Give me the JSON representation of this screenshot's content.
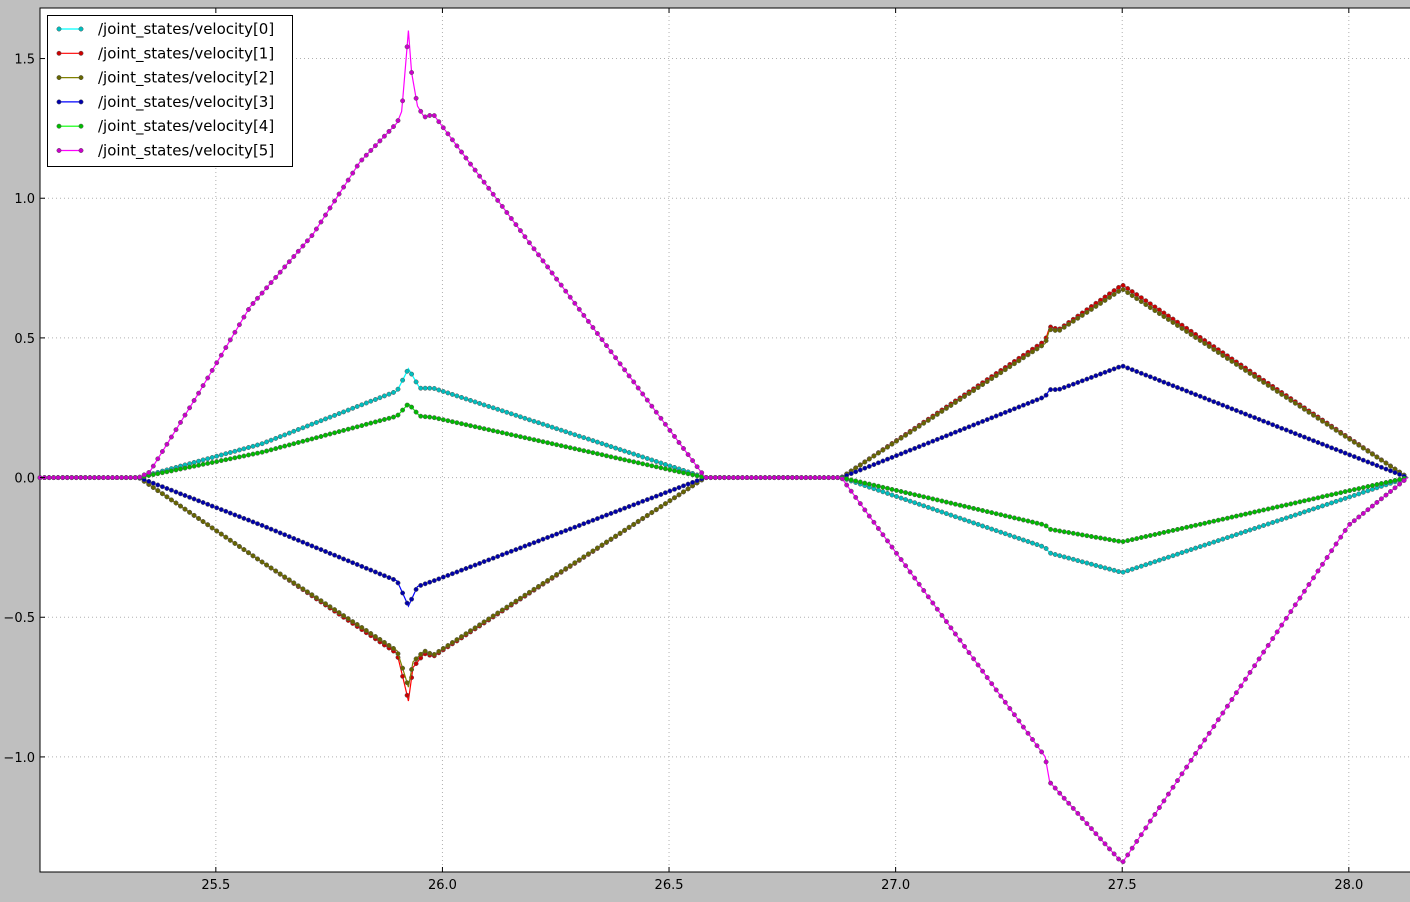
{
  "chart_data": {
    "type": "line",
    "title": "",
    "xlabel": "",
    "ylabel": "",
    "xlim": [
      25.112,
      28.135
    ],
    "ylim": [
      -1.412,
      1.681
    ],
    "grid": true,
    "legend_position": "top-left",
    "xticks": [
      25.5,
      26.0,
      26.5,
      27.0,
      27.5,
      28.0
    ],
    "xtick_labels": [
      "25.5",
      "26.0",
      "26.5",
      "27.0",
      "27.5",
      "28.0"
    ],
    "yticks": [
      -1.0,
      -0.5,
      0.0,
      0.5,
      1.0,
      1.5
    ],
    "ytick_labels": [
      "−1.0",
      "−0.5",
      "0.0",
      "0.5",
      "1.0",
      "1.5"
    ],
    "sample_step": 0.01,
    "series": [
      {
        "name": "/joint_states/velocity[0]",
        "color": "#00ffff",
        "marker": "#00bfbf",
        "points": [
          [
            25.112,
            0
          ],
          [
            25.33,
            0
          ],
          [
            25.6,
            0.12
          ],
          [
            25.9,
            0.31
          ],
          [
            25.925,
            0.39
          ],
          [
            25.95,
            0.32
          ],
          [
            25.98,
            0.32
          ],
          [
            26.58,
            0
          ],
          [
            26.88,
            0
          ],
          [
            27.33,
            -0.25
          ],
          [
            27.34,
            -0.27
          ],
          [
            27.5,
            -0.34
          ],
          [
            28.13,
            0
          ]
        ]
      },
      {
        "name": "/joint_states/velocity[1]",
        "color": "#ff0000",
        "marker": "#cc0000",
        "points": [
          [
            25.112,
            0
          ],
          [
            25.33,
            0
          ],
          [
            25.6,
            -0.3
          ],
          [
            25.9,
            -0.63
          ],
          [
            25.925,
            -0.8
          ],
          [
            25.935,
            -0.68
          ],
          [
            25.96,
            -0.63
          ],
          [
            25.98,
            -0.64
          ],
          [
            26.58,
            0
          ],
          [
            26.88,
            0
          ],
          [
            27.33,
            0.49
          ],
          [
            27.34,
            0.54
          ],
          [
            27.36,
            0.53
          ],
          [
            27.5,
            0.69
          ],
          [
            28.13,
            0
          ]
        ]
      },
      {
        "name": "/joint_states/velocity[2]",
        "color": "#808000",
        "marker": "#666600",
        "points": [
          [
            25.112,
            0
          ],
          [
            25.33,
            0
          ],
          [
            25.6,
            -0.3
          ],
          [
            25.9,
            -0.62
          ],
          [
            25.925,
            -0.75
          ],
          [
            25.935,
            -0.66
          ],
          [
            25.96,
            -0.62
          ],
          [
            25.98,
            -0.635
          ],
          [
            26.58,
            0
          ],
          [
            26.88,
            0
          ],
          [
            27.33,
            0.48
          ],
          [
            27.34,
            0.53
          ],
          [
            27.36,
            0.525
          ],
          [
            27.5,
            0.675
          ],
          [
            28.13,
            0
          ]
        ]
      },
      {
        "name": "/joint_states/velocity[3]",
        "color": "#0000ff",
        "marker": "#0000aa",
        "points": [
          [
            25.112,
            0
          ],
          [
            25.33,
            0
          ],
          [
            25.6,
            -0.17
          ],
          [
            25.9,
            -0.37
          ],
          [
            25.925,
            -0.46
          ],
          [
            25.945,
            -0.39
          ],
          [
            25.98,
            -0.37
          ],
          [
            26.58,
            0
          ],
          [
            26.88,
            0
          ],
          [
            27.33,
            0.29
          ],
          [
            27.34,
            0.315
          ],
          [
            27.36,
            0.315
          ],
          [
            27.5,
            0.4
          ],
          [
            28.13,
            0
          ]
        ]
      },
      {
        "name": "/joint_states/velocity[4]",
        "color": "#00ff00",
        "marker": "#00bb00",
        "points": [
          [
            25.112,
            0
          ],
          [
            25.33,
            0
          ],
          [
            25.6,
            0.09
          ],
          [
            25.9,
            0.22
          ],
          [
            25.925,
            0.265
          ],
          [
            25.95,
            0.22
          ],
          [
            25.98,
            0.215
          ],
          [
            26.58,
            0
          ],
          [
            26.88,
            0
          ],
          [
            27.33,
            -0.17
          ],
          [
            27.34,
            -0.185
          ],
          [
            27.5,
            -0.23
          ],
          [
            28.13,
            0
          ]
        ]
      },
      {
        "name": "/joint_states/velocity[5]",
        "color": "#ff00ff",
        "marker": "#cc00cc",
        "points": [
          [
            25.112,
            0
          ],
          [
            25.33,
            0
          ],
          [
            25.354,
            0.02
          ],
          [
            25.465,
            0.31
          ],
          [
            25.575,
            0.61
          ],
          [
            25.714,
            0.87
          ],
          [
            25.818,
            1.13
          ],
          [
            25.9,
            1.27
          ],
          [
            25.91,
            1.31
          ],
          [
            25.925,
            1.6
          ],
          [
            25.932,
            1.45
          ],
          [
            25.945,
            1.33
          ],
          [
            25.96,
            1.29
          ],
          [
            25.98,
            1.3
          ],
          [
            26.58,
            0
          ],
          [
            26.88,
            0
          ],
          [
            27.33,
            -1.0
          ],
          [
            27.34,
            -1.09
          ],
          [
            27.5,
            -1.38
          ],
          [
            28.0,
            -0.17
          ],
          [
            28.13,
            0
          ]
        ]
      }
    ]
  }
}
